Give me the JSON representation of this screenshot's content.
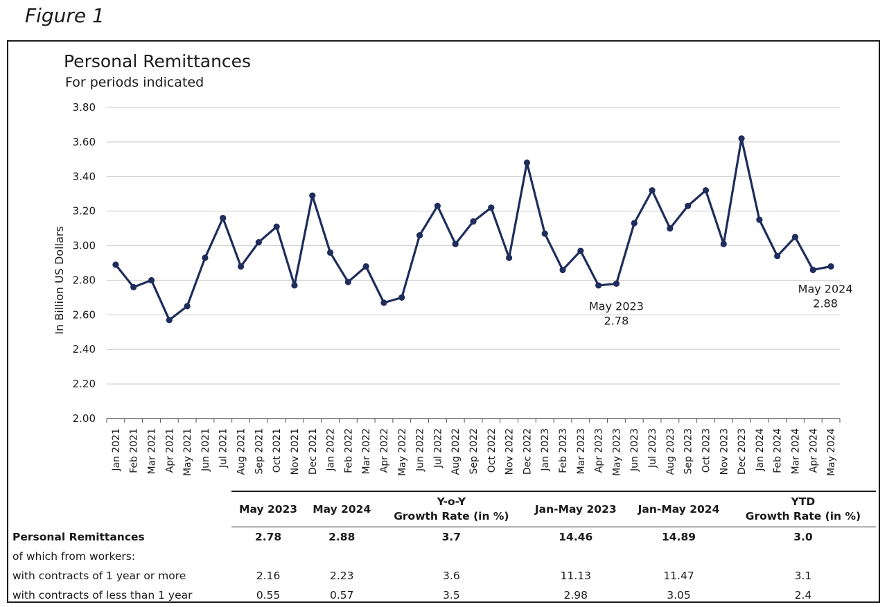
{
  "figure_label": "Figure 1",
  "chart_data": {
    "type": "line",
    "title": "Personal Remittances",
    "subtitle": "For periods indicated",
    "xlabel": "",
    "ylabel": "In Billion US Dollars",
    "ylim": [
      2.0,
      3.8
    ],
    "yticks": [
      "2.00",
      "2.20",
      "2.40",
      "2.60",
      "2.80",
      "3.00",
      "3.20",
      "3.40",
      "3.60",
      "3.80"
    ],
    "grid": true,
    "line_color": "#1f2d5c",
    "categories": [
      "Jan 2021",
      "Feb 2021",
      "Mar 2021",
      "Apr 2021",
      "May 2021",
      "Jun 2021",
      "Jul 2021",
      "Aug 2021",
      "Sep 2021",
      "Oct 2021",
      "Nov 2021",
      "Dec 2021",
      "Jan 2022",
      "Feb 2022",
      "Mar 2022",
      "Apr 2022",
      "May 2022",
      "Jun 2022",
      "Jul 2022",
      "Aug 2022",
      "Sep 2022",
      "Oct 2022",
      "Nov 2022",
      "Dec 2022",
      "Jan 2023",
      "Feb 2023",
      "Mar 2023",
      "Apr 2023",
      "May 2023",
      "Jun 2023",
      "Jul 2023",
      "Aug 2023",
      "Sep 2023",
      "Oct 2023",
      "Nov 2023",
      "Dec 2023",
      "Jan 2024",
      "Feb 2024",
      "Mar 2024",
      "Apr 2024",
      "May 2024"
    ],
    "values": [
      2.89,
      2.76,
      2.8,
      2.57,
      2.65,
      2.93,
      3.16,
      2.88,
      3.02,
      3.11,
      2.77,
      3.29,
      2.96,
      2.79,
      2.88,
      2.67,
      2.7,
      3.06,
      3.23,
      3.01,
      3.14,
      3.22,
      2.93,
      3.48,
      3.07,
      2.86,
      2.97,
      2.77,
      2.78,
      3.13,
      3.32,
      3.1,
      3.23,
      3.32,
      3.01,
      3.62,
      3.15,
      2.94,
      3.05,
      2.86,
      2.88
    ],
    "annotations": [
      {
        "label": "May 2023",
        "value": "2.78",
        "index": 28
      },
      {
        "label": "May 2024",
        "value": "2.88",
        "index": 40
      }
    ]
  },
  "table": {
    "headers": [
      "May 2023",
      "May 2024",
      "Y-o-Y\nGrowth Rate (in %)",
      "Jan-May 2023",
      "Jan-May 2024",
      "YTD\nGrowth Rate (in %)"
    ],
    "rows": [
      {
        "label": "Personal Remittances",
        "bold": true,
        "values": [
          "2.78",
          "2.88",
          "3.7",
          "14.46",
          "14.89",
          "3.0"
        ]
      },
      {
        "label": "of which from workers:",
        "bold": false,
        "values": [
          "",
          "",
          "",
          "",
          "",
          ""
        ]
      },
      {
        "label": "with contracts of 1 year or more",
        "bold": false,
        "values": [
          "2.16",
          "2.23",
          "3.6",
          "11.13",
          "11.47",
          "3.1"
        ]
      },
      {
        "label": "with contracts of less than 1 year",
        "bold": false,
        "values": [
          "0.55",
          "0.57",
          "3.5",
          "2.98",
          "3.05",
          "2.4"
        ]
      }
    ]
  }
}
